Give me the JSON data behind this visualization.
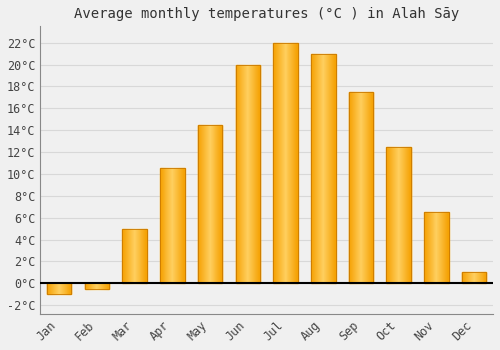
{
  "months": [
    "Jan",
    "Feb",
    "Mar",
    "Apr",
    "May",
    "Jun",
    "Jul",
    "Aug",
    "Sep",
    "Oct",
    "Nov",
    "Dec"
  ],
  "temperatures": [
    -1.0,
    -0.5,
    5.0,
    10.5,
    14.5,
    20.0,
    22.0,
    21.0,
    17.5,
    12.5,
    6.5,
    1.0
  ],
  "bar_color_light": "#FFD060",
  "bar_color_dark": "#F5A000",
  "bar_edge_color": "#C87800",
  "title": "Average monthly temperatures (°C ) in Alah Sāy",
  "ylabel_ticks": [
    "-2°C",
    "0°C",
    "2°C",
    "4°C",
    "6°C",
    "8°C",
    "10°C",
    "12°C",
    "14°C",
    "16°C",
    "18°C",
    "20°C",
    "22°C"
  ],
  "ytick_values": [
    -2,
    0,
    2,
    4,
    6,
    8,
    10,
    12,
    14,
    16,
    18,
    20,
    22
  ],
  "ylim": [
    -2.8,
    23.5
  ],
  "background_color": "#f0f0f0",
  "grid_color": "#d8d8d8",
  "title_fontsize": 10,
  "tick_fontsize": 8.5,
  "zero_line_color": "#000000",
  "spine_color": "#888888"
}
